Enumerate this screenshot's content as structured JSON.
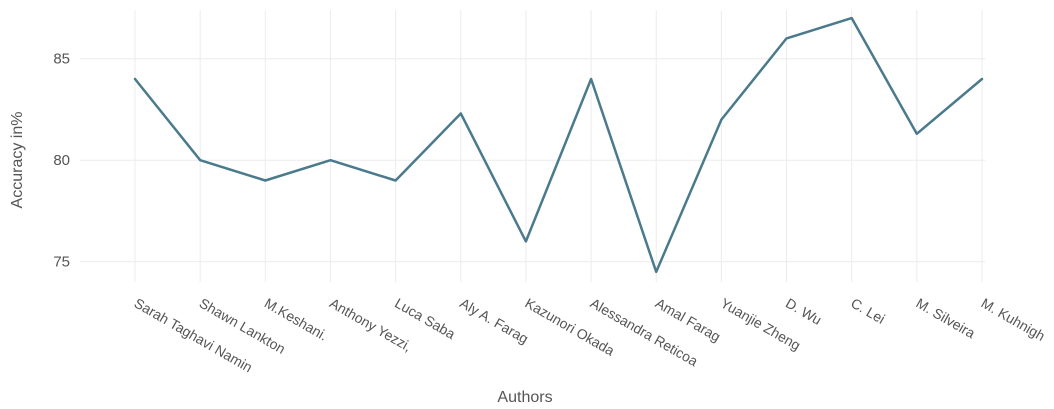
{
  "chart_data": {
    "type": "line",
    "title": "",
    "xlabel": "Authors",
    "ylabel": "Accuracy in%",
    "categories": [
      "Sarah Taghavi Namin",
      "Shawn Lankton",
      "M.Keshani.",
      "Anthony Yezzi,",
      "Luca Saba",
      "Aly A. Farag",
      "Kazunori Okada",
      "Alessandra Reticoa",
      "Amal Farag",
      "Yuanjie Zheng",
      "D. Wu",
      "C. Lei",
      "M. Silveira",
      "M. Kuhnigh"
    ],
    "series": [
      {
        "values": [
          84,
          80,
          79,
          80,
          79,
          82.3,
          76,
          84,
          74.5,
          82,
          86,
          87,
          81.3,
          84
        ]
      }
    ],
    "yticks": [
      75,
      80,
      85
    ],
    "ylim": [
      74,
      87.4
    ],
    "grid": true,
    "legend": "none",
    "line_color": "#4a7a8c"
  }
}
